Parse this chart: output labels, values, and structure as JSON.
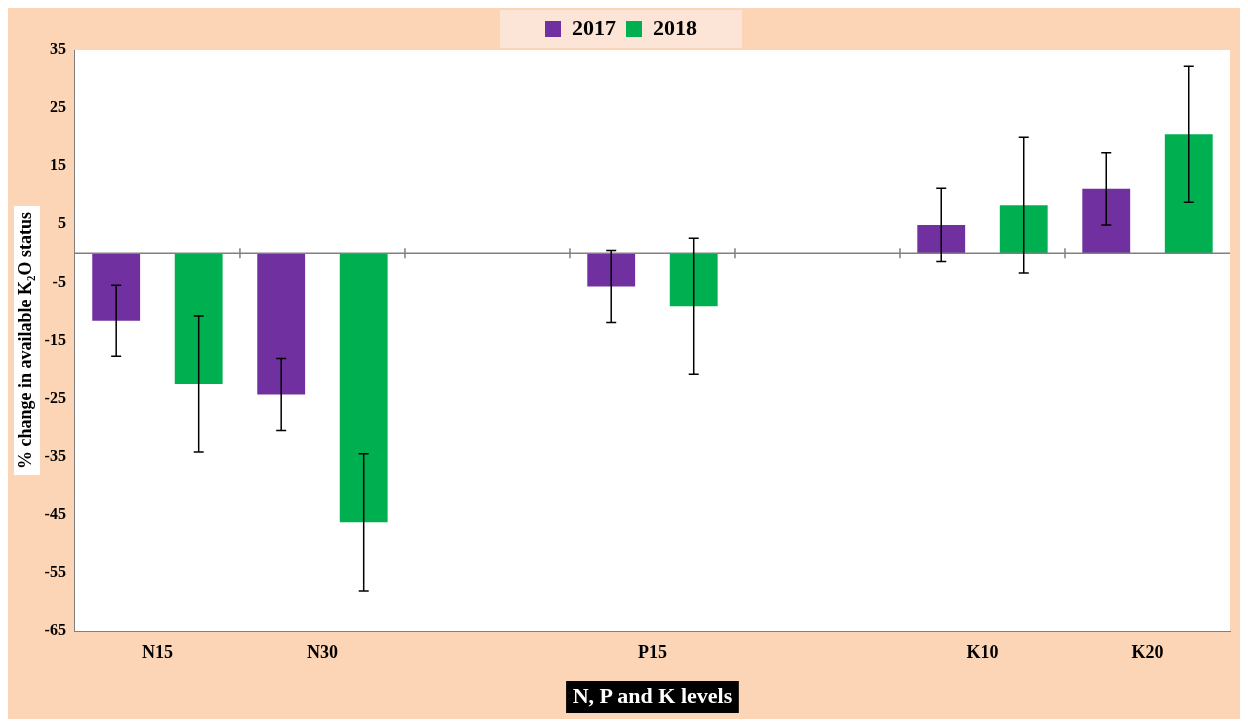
{
  "chart_data": {
    "type": "bar",
    "xlabel": "N, P and K levels",
    "ylabel": "% change in available K₂O status",
    "categories": [
      "N15",
      "N30",
      null,
      "P15",
      null,
      "K10",
      "K20"
    ],
    "series": [
      {
        "name": "2017",
        "color": "#7030a0",
        "values": [
          -11.6,
          -24.3,
          null,
          -5.7,
          null,
          4.9,
          11.1
        ],
        "errors": [
          6.1,
          6.2,
          null,
          6.2,
          null,
          6.3,
          6.2
        ]
      },
      {
        "name": "2018",
        "color": "#00b050",
        "values": [
          -22.5,
          -46.3,
          null,
          -9.1,
          null,
          8.3,
          20.5
        ],
        "errors": [
          11.7,
          11.8,
          null,
          11.7,
          null,
          11.7,
          11.7
        ]
      }
    ],
    "ylim": [
      -65,
      35
    ],
    "yticks": [
      -65,
      -55,
      -45,
      -35,
      -25,
      -15,
      -5,
      5,
      15,
      25,
      35
    ],
    "grid": false,
    "legend": "top"
  }
}
